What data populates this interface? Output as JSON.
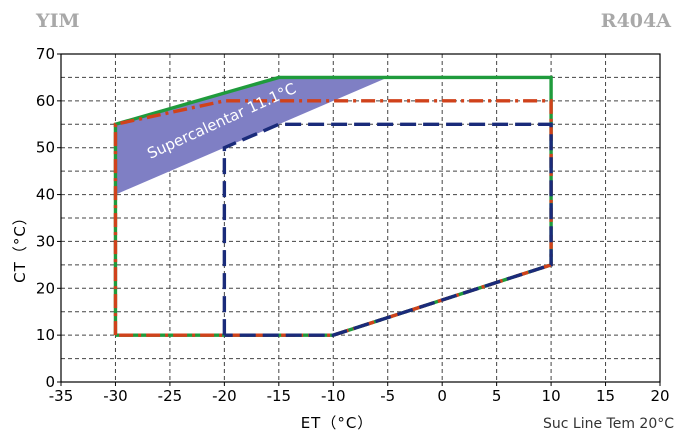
{
  "header": {
    "left_brand": "YIM",
    "right_brand": "R404A"
  },
  "chart_data": {
    "type": "line",
    "title": "",
    "xlabel": "ET（°C）",
    "ylabel": "CT（°C）",
    "xlim": [
      -35,
      20
    ],
    "ylim": [
      0,
      70
    ],
    "x_ticks": [
      -35,
      -30,
      -25,
      -20,
      -15,
      -10,
      -5,
      0,
      5,
      10,
      15,
      20
    ],
    "y_ticks": [
      0,
      10,
      20,
      30,
      40,
      50,
      60,
      70
    ],
    "minor_grid_step": 5,
    "grid": true,
    "note": "Suc Line Tem 20°C",
    "band": {
      "label": "Supercalentar 11.1°C",
      "polygon": [
        [
          -30,
          40
        ],
        [
          -30,
          55
        ],
        [
          -15,
          65
        ],
        [
          -5,
          65
        ]
      ],
      "color": "#7f7fc4"
    },
    "series": [
      {
        "style": "solid",
        "color": "#1f9b3c",
        "points": [
          [
            -30,
            10
          ],
          [
            -30,
            55
          ],
          [
            -15,
            65
          ],
          [
            10,
            65
          ],
          [
            10,
            25
          ],
          [
            -10,
            10
          ],
          [
            -30,
            10
          ]
        ]
      },
      {
        "style": "dashdot",
        "color": "#d0421b",
        "points": [
          [
            -30,
            10
          ],
          [
            -30,
            55
          ],
          [
            -20,
            60
          ],
          [
            10,
            60
          ],
          [
            10,
            25
          ],
          [
            -10,
            10
          ],
          [
            -30,
            10
          ]
        ]
      },
      {
        "style": "dashed",
        "color": "#1a2b7a",
        "points": [
          [
            -20,
            10
          ],
          [
            -20,
            50
          ],
          [
            -15,
            55
          ],
          [
            10,
            55
          ],
          [
            10,
            25
          ],
          [
            -10,
            10
          ],
          [
            -20,
            10
          ]
        ]
      }
    ]
  }
}
